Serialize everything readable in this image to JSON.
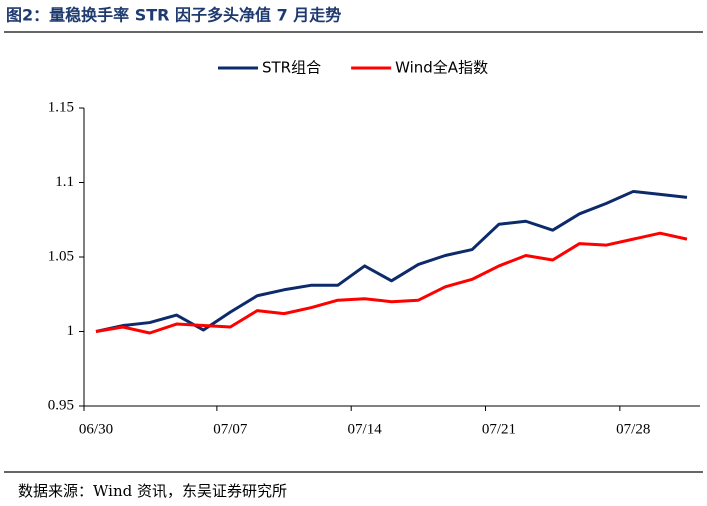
{
  "chart_data": {
    "type": "line",
    "title": "图2：量稳换手率 STR 因子多头净值 7 月走势",
    "source": "数据来源：Wind 资讯，东吴证券研究所",
    "categories": [
      "06/30",
      null,
      null,
      null,
      null,
      "07/07",
      null,
      null,
      null,
      null,
      "07/14",
      null,
      null,
      null,
      null,
      "07/21",
      null,
      null,
      null,
      null,
      "07/28",
      null,
      null
    ],
    "series": [
      {
        "name": "STR组合",
        "color": "#0d2a6b",
        "values": [
          1.0,
          1.004,
          1.006,
          1.011,
          1.001,
          1.013,
          1.024,
          1.028,
          1.031,
          1.031,
          1.044,
          1.034,
          1.045,
          1.051,
          1.055,
          1.072,
          1.074,
          1.068,
          1.079,
          1.086,
          1.094,
          1.092,
          1.09
        ]
      },
      {
        "name": "Wind全A指数",
        "color": "#ff0000",
        "values": [
          1.0,
          1.003,
          0.999,
          1.005,
          1.004,
          1.003,
          1.014,
          1.012,
          1.016,
          1.021,
          1.022,
          1.02,
          1.021,
          1.03,
          1.035,
          1.044,
          1.051,
          1.048,
          1.059,
          1.058,
          1.062,
          1.066,
          1.062
        ]
      }
    ],
    "ylim": [
      0.95,
      1.15
    ],
    "yticks": [
      0.95,
      1,
      1.05,
      1.1,
      1.15
    ],
    "legend": "top"
  }
}
